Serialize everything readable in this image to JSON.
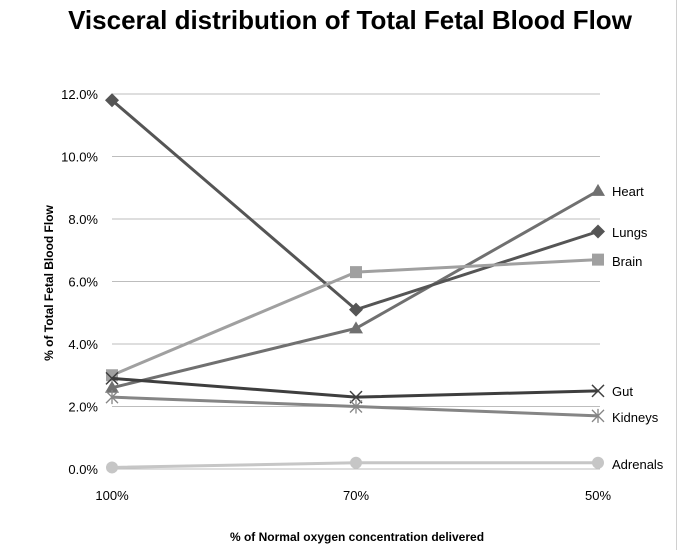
{
  "chart_data": {
    "type": "line",
    "title": "Visceral distribution of Total Fetal Blood Flow",
    "xlabel": "% of Normal oxygen concentration delivered",
    "ylabel": "% of Total Fetal Blood Flow",
    "categories": [
      "100%",
      "70%",
      "50%"
    ],
    "ylim": [
      0,
      12
    ],
    "y_ticks": [
      "0.0%",
      "2.0%",
      "4.0%",
      "6.0%",
      "8.0%",
      "10.0%",
      "12.0%"
    ],
    "grid": true,
    "legend": "inline-right",
    "series": [
      {
        "name": "Heart",
        "values": [
          2.6,
          4.5,
          8.9
        ],
        "marker": "triangle",
        "color": "#707070"
      },
      {
        "name": "Lungs",
        "values": [
          11.8,
          5.1,
          7.6
        ],
        "marker": "diamond",
        "color": "#555555"
      },
      {
        "name": "Brain",
        "values": [
          3.0,
          6.3,
          6.7
        ],
        "marker": "square",
        "color": "#a0a0a0"
      },
      {
        "name": "Gut",
        "values": [
          2.9,
          2.3,
          2.5
        ],
        "marker": "x",
        "color": "#3e3e3e"
      },
      {
        "name": "Kidneys",
        "values": [
          2.3,
          2.0,
          1.7
        ],
        "marker": "star",
        "color": "#858585"
      },
      {
        "name": "Adrenals",
        "values": [
          0.05,
          0.2,
          0.2
        ],
        "marker": "circle",
        "color": "#c6c6c6"
      }
    ]
  }
}
